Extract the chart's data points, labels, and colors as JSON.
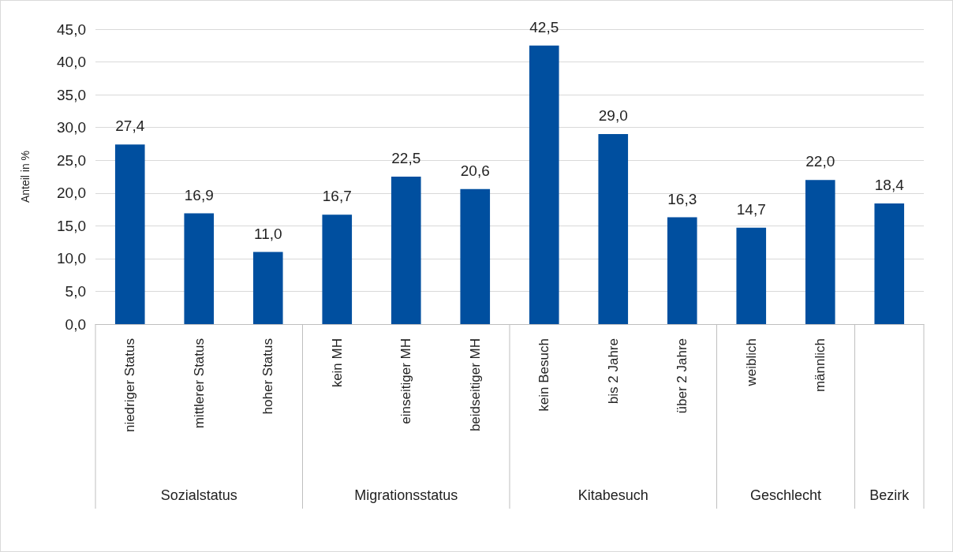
{
  "chart_data": {
    "type": "bar",
    "ylabel": "Anteil in %",
    "categories": [
      "niedriger Status",
      "mittlerer Status",
      "hoher Status",
      "kein MH",
      "einseitiger MH",
      "beidseitiger MH",
      "kein Besuch",
      "bis 2 Jahre",
      "über 2 Jahre",
      "weiblich",
      "männlich",
      null
    ],
    "values": [
      27.4,
      16.9,
      11.0,
      16.7,
      22.5,
      20.6,
      42.5,
      29.0,
      16.3,
      14.7,
      22.0,
      18.4
    ],
    "value_labels": [
      "27,4",
      "16,9",
      "11,0",
      "16,7",
      "22,5",
      "20,6",
      "42,5",
      "29,0",
      "16,3",
      "14,7",
      "22,0",
      "18,4"
    ],
    "color": "#004f9f",
    "ylim": [
      0,
      45
    ],
    "yticks": [
      {
        "value": 0,
        "label": "0,0"
      },
      {
        "value": 5,
        "label": "5,0"
      },
      {
        "value": 10,
        "label": "10,0"
      },
      {
        "value": 15,
        "label": "15,0"
      },
      {
        "value": 20,
        "label": "20,0"
      },
      {
        "value": 25,
        "label": "25,0"
      },
      {
        "value": 30,
        "label": "30,0"
      },
      {
        "value": 35,
        "label": "35,0"
      },
      {
        "value": 40,
        "label": "40,0"
      },
      {
        "value": 45,
        "label": "45,0"
      }
    ],
    "grid": "y",
    "annotations": [
      "Sozialstatus",
      "Migrationsstatus",
      "Kitabesuch",
      "Geschlecht",
      "Bezirk"
    ]
  }
}
